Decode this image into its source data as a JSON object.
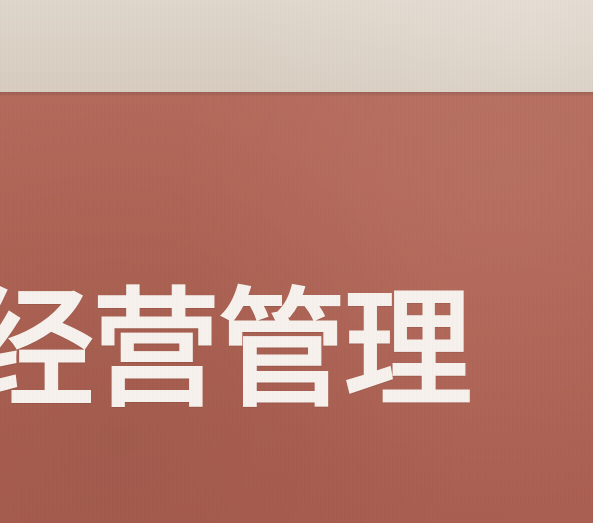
{
  "cover": {
    "title_text": "经营管理",
    "panel_color": "#b06455",
    "text_color": "#f6f1ec",
    "paper_color": "#d8cdc0"
  }
}
